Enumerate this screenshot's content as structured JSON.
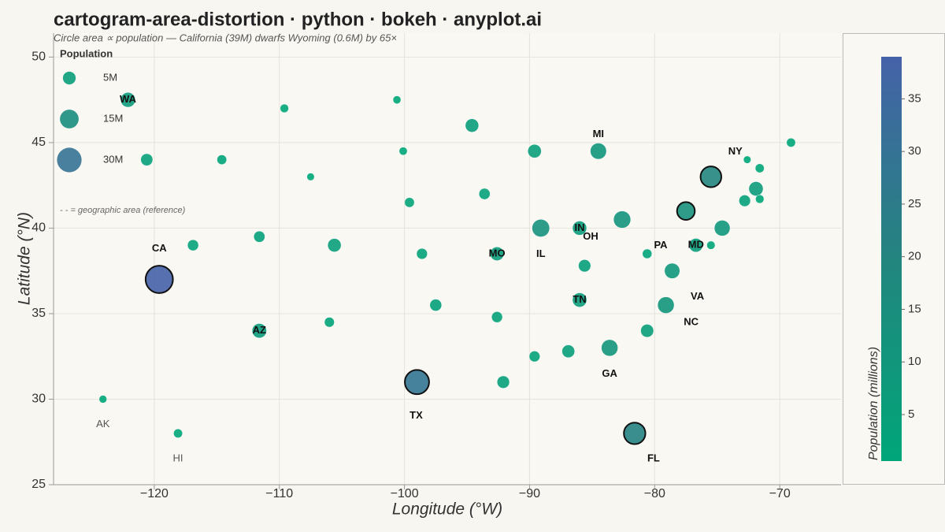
{
  "chart_data": {
    "type": "bubble",
    "title": "cartogram-area-distortion · python · bokeh · anyplot.ai",
    "subtitle": "Circle area ∝ population — California (39M) dwarfs Wyoming (0.6M) by 65×",
    "x_label": "Longitude (°W)",
    "y_label": "Latitude (°N)",
    "x": [
      -122.1,
      -109.6,
      -100.6,
      -94.6,
      -120.6,
      -114.6,
      -107.5,
      -100.1,
      -89.6,
      -84.5,
      -75.5,
      -72.6,
      -69.1,
      -71.6,
      -71.9,
      -72.8,
      -71.6,
      -93.6,
      -99.6,
      -111.6,
      -105.6,
      -116.9,
      -119.6,
      -98.6,
      -92.6,
      -89.1,
      -86.0,
      -82.6,
      -77.5,
      -74.6,
      -80.6,
      -76.7,
      -75.5,
      -85.6,
      -78.6,
      -86.0,
      -79.1,
      -97.5,
      -92.6,
      -106.0,
      -111.6,
      -80.6,
      -83.6,
      -86.9,
      -89.6,
      -92.1,
      -99.0,
      -81.6,
      -124.1,
      -118.1
    ],
    "y": [
      47.5,
      47.0,
      47.5,
      46.0,
      44.0,
      44.0,
      43.0,
      44.5,
      44.5,
      44.5,
      43.0,
      44.0,
      45.0,
      43.5,
      42.3,
      41.6,
      41.7,
      42.0,
      41.5,
      39.5,
      39.0,
      39.0,
      37.0,
      38.5,
      38.5,
      40.0,
      40.0,
      40.5,
      41.0,
      40.0,
      38.5,
      39.0,
      39.0,
      37.8,
      37.5,
      35.8,
      35.5,
      35.5,
      34.8,
      34.5,
      34.0,
      34.0,
      33.0,
      32.8,
      32.5,
      31.0,
      31.0,
      28.0,
      30.0,
      28.0
    ],
    "values": [
      7.7,
      1.1,
      0.8,
      5.7,
      4.2,
      1.9,
      0.6,
      0.9,
      5.9,
      10.0,
      19.7,
      0.6,
      1.4,
      1.4,
      7.0,
      3.6,
      1.1,
      3.2,
      2.0,
      3.3,
      5.8,
      3.1,
      39.0,
      2.9,
      6.2,
      12.6,
      6.8,
      11.8,
      13.0,
      9.3,
      1.8,
      6.2,
      1.0,
      4.5,
      8.6,
      7.0,
      10.7,
      4.0,
      3.0,
      2.1,
      7.3,
      5.2,
      10.7,
      5.0,
      2.9,
      4.6,
      29.1,
      21.5,
      0.7,
      1.4
    ],
    "labels": [
      "WA",
      null,
      null,
      null,
      null,
      null,
      null,
      null,
      null,
      "MI",
      "NY",
      null,
      null,
      null,
      null,
      null,
      null,
      null,
      null,
      null,
      null,
      null,
      "CA",
      null,
      "MO",
      "IL",
      "IN",
      "OH",
      "PA",
      null,
      null,
      "MD",
      null,
      null,
      "VA",
      "TN",
      "NC",
      null,
      null,
      null,
      "AZ",
      null,
      "GA",
      null,
      null,
      null,
      "TX",
      "FL",
      "AK",
      "HI"
    ],
    "outlined": [
      false,
      false,
      false,
      false,
      false,
      false,
      false,
      false,
      false,
      false,
      true,
      false,
      false,
      false,
      false,
      false,
      false,
      false,
      false,
      false,
      false,
      false,
      true,
      false,
      false,
      false,
      false,
      false,
      true,
      false,
      false,
      false,
      false,
      false,
      false,
      false,
      false,
      false,
      false,
      false,
      false,
      false,
      false,
      false,
      false,
      false,
      true,
      true,
      false,
      false
    ],
    "xlim": [
      -128.05,
      -65.1
    ],
    "ylim": [
      25,
      51.4
    ],
    "xticks": [
      {
        "value": -120,
        "label": "−120"
      },
      {
        "value": -110,
        "label": "−110"
      },
      {
        "value": -100,
        "label": "−100"
      },
      {
        "value": -90,
        "label": "−90"
      },
      {
        "value": -80,
        "label": "−80"
      },
      {
        "value": -70,
        "label": "−70"
      }
    ],
    "yticks": [
      25,
      30,
      35,
      40,
      45,
      50
    ],
    "grid": true,
    "colormap": [
      "#00a679",
      "#23857f",
      "#4562a8"
    ],
    "colorbar": {
      "label": "Population (millions)",
      "clim": [
        0.58,
        39.0
      ],
      "ticks": [
        5,
        10,
        15,
        20,
        25,
        30,
        35
      ]
    },
    "legend": {
      "title": "Population",
      "position": "top-left",
      "sizes": [
        5,
        15,
        30
      ],
      "labels": [
        "5M",
        "15M",
        "30M"
      ],
      "note": "- - = geographic area (reference)"
    }
  }
}
